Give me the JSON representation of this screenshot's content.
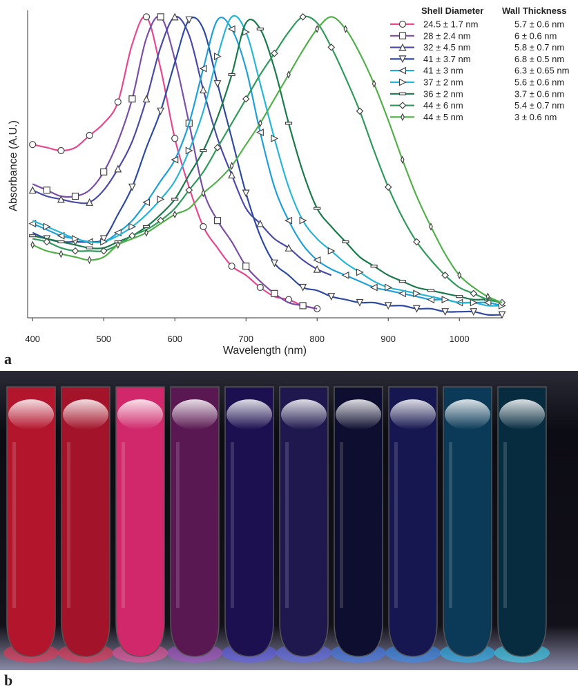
{
  "chart_data": {
    "type": "line",
    "x_label": "Wavelength (nm)",
    "y_label": "Absorbance (A.U.)",
    "legend_columns": [
      "Shell Diameter",
      "Wall Thickness"
    ],
    "legend_position": "top-right",
    "xlim": [
      393,
      1060
    ],
    "xticks": [
      400,
      500,
      600,
      700,
      800,
      900,
      1000
    ],
    "ylim": [
      0,
      1
    ],
    "grid": false,
    "x": [
      400,
      420,
      440,
      460,
      480,
      500,
      520,
      540,
      560,
      580,
      600,
      620,
      640,
      660,
      680,
      700,
      720,
      740,
      760,
      780,
      800,
      820,
      840,
      860,
      880,
      900,
      920,
      940,
      960,
      980,
      1000,
      1020,
      1040,
      1060
    ],
    "series": [
      {
        "name": "24.5 ± 1.7 nm",
        "wall_thickness": "5.7 ± 0.6 nm",
        "color": "#e8468f",
        "marker": "circle",
        "values": [
          0.57,
          0.56,
          0.55,
          0.56,
          0.6,
          0.64,
          0.71,
          0.9,
          0.99,
          0.82,
          0.59,
          0.43,
          0.3,
          0.23,
          0.17,
          0.14,
          0.1,
          0.07,
          0.06,
          0.04,
          0.03,
          null,
          null,
          null,
          null,
          null,
          null,
          null,
          null,
          null,
          null,
          null,
          null,
          null
        ]
      },
      {
        "name": "28 ± 2.4 nm",
        "wall_thickness": "6 ± 0.6 nm",
        "color": "#7b4fa8",
        "marker": "square",
        "values": [
          0.44,
          0.42,
          0.4,
          0.4,
          0.42,
          0.48,
          0.58,
          0.72,
          0.92,
          0.99,
          0.85,
          0.64,
          0.42,
          0.32,
          0.25,
          0.17,
          0.12,
          0.08,
          0.05,
          0.04,
          0.03,
          null,
          null,
          null,
          null,
          null,
          null,
          null,
          null,
          null,
          null,
          null,
          null,
          null
        ]
      },
      {
        "name": "32 ± 4.5 nm",
        "wall_thickness": "5.8 ± 0.7 nm",
        "color": "#4a4aa8",
        "marker": "triangle-up",
        "values": [
          0.42,
          0.4,
          0.39,
          0.38,
          0.38,
          0.42,
          0.49,
          0.58,
          0.72,
          0.89,
          0.99,
          0.93,
          0.75,
          0.59,
          0.47,
          0.36,
          0.31,
          0.26,
          0.23,
          0.19,
          0.16,
          0.14,
          null,
          null,
          null,
          null,
          null,
          null,
          null,
          null,
          null,
          null,
          null,
          null
        ]
      },
      {
        "name": "41 ± 3.7 nm",
        "wall_thickness": "6.8 ± 0.5 nm",
        "color": "#2e4aa0",
        "marker": "triangle-down",
        "values": [
          0.28,
          0.26,
          0.25,
          0.25,
          0.25,
          0.26,
          0.34,
          0.43,
          0.56,
          0.68,
          0.84,
          0.98,
          0.95,
          0.77,
          0.59,
          0.41,
          0.27,
          0.18,
          0.14,
          0.1,
          0.09,
          0.07,
          0.06,
          0.05,
          0.05,
          0.04,
          0.04,
          0.03,
          0.03,
          0.02,
          0.02,
          0.02,
          0.01,
          0.01
        ]
      },
      {
        "name": "41 ± 3 nm",
        "wall_thickness": "6.3 ± 0.65 nm",
        "color": "#1e9fd8",
        "marker": "triangle-left",
        "values": [
          0.31,
          0.29,
          0.27,
          0.26,
          0.25,
          0.25,
          0.28,
          0.32,
          0.38,
          0.45,
          0.52,
          0.64,
          0.82,
          0.98,
          0.95,
          0.82,
          0.61,
          0.43,
          0.32,
          0.24,
          0.19,
          0.16,
          0.14,
          0.12,
          0.1,
          0.09,
          0.08,
          0.07,
          0.06,
          0.06,
          0.05,
          0.05,
          0.05,
          0.04
        ]
      },
      {
        "name": "37 ± 2 nm",
        "wall_thickness": "5.6 ± 0.6 nm",
        "color": "#26b5d6",
        "marker": "triangle-right",
        "values": [
          0.32,
          0.3,
          0.28,
          0.26,
          0.25,
          0.25,
          0.27,
          0.3,
          0.34,
          0.39,
          0.45,
          0.55,
          0.68,
          0.86,
          0.99,
          0.94,
          0.77,
          0.59,
          0.43,
          0.32,
          0.26,
          0.22,
          0.18,
          0.15,
          0.12,
          0.1,
          0.09,
          0.08,
          0.07,
          0.06,
          0.05,
          0.05,
          0.04,
          0.04
        ]
      },
      {
        "name": "36 ± 2 nm",
        "wall_thickness": "3.7 ± 0.6 nm",
        "color": "#1a7a4a",
        "marker": "dash",
        "values": [
          0.27,
          0.26,
          0.25,
          0.24,
          0.23,
          0.23,
          0.25,
          0.27,
          0.3,
          0.34,
          0.39,
          0.47,
          0.55,
          0.66,
          0.8,
          0.97,
          0.95,
          0.82,
          0.64,
          0.48,
          0.36,
          0.3,
          0.25,
          0.2,
          0.17,
          0.14,
          0.12,
          0.1,
          0.09,
          0.08,
          0.07,
          0.06,
          0.06,
          0.05
        ]
      },
      {
        "name": "44 ± 6 nm",
        "wall_thickness": "5.4 ± 0.7 nm",
        "color": "#2f9a5a",
        "marker": "diamond",
        "values": [
          0.26,
          0.25,
          0.23,
          0.22,
          0.22,
          0.22,
          0.24,
          0.27,
          0.29,
          0.32,
          0.36,
          0.42,
          0.48,
          0.56,
          0.64,
          0.72,
          0.8,
          0.87,
          0.94,
          0.99,
          0.97,
          0.89,
          0.79,
          0.68,
          0.55,
          0.43,
          0.33,
          0.25,
          0.19,
          0.14,
          0.1,
          0.08,
          0.06,
          0.05
        ]
      },
      {
        "name": "44 ± 5 nm",
        "wall_thickness": "3 ± 0.6 nm",
        "color": "#52b04a",
        "marker": "thin-diamond",
        "values": [
          0.24,
          0.22,
          0.21,
          0.2,
          0.19,
          0.2,
          0.24,
          0.26,
          0.28,
          0.31,
          0.34,
          0.36,
          0.41,
          0.45,
          0.5,
          0.57,
          0.64,
          0.72,
          0.8,
          0.88,
          0.95,
          0.99,
          0.95,
          0.87,
          0.77,
          0.65,
          0.52,
          0.4,
          0.3,
          0.21,
          0.14,
          0.1,
          0.07,
          0.05
        ]
      }
    ]
  },
  "panel_labels": [
    "a",
    "b"
  ]
}
